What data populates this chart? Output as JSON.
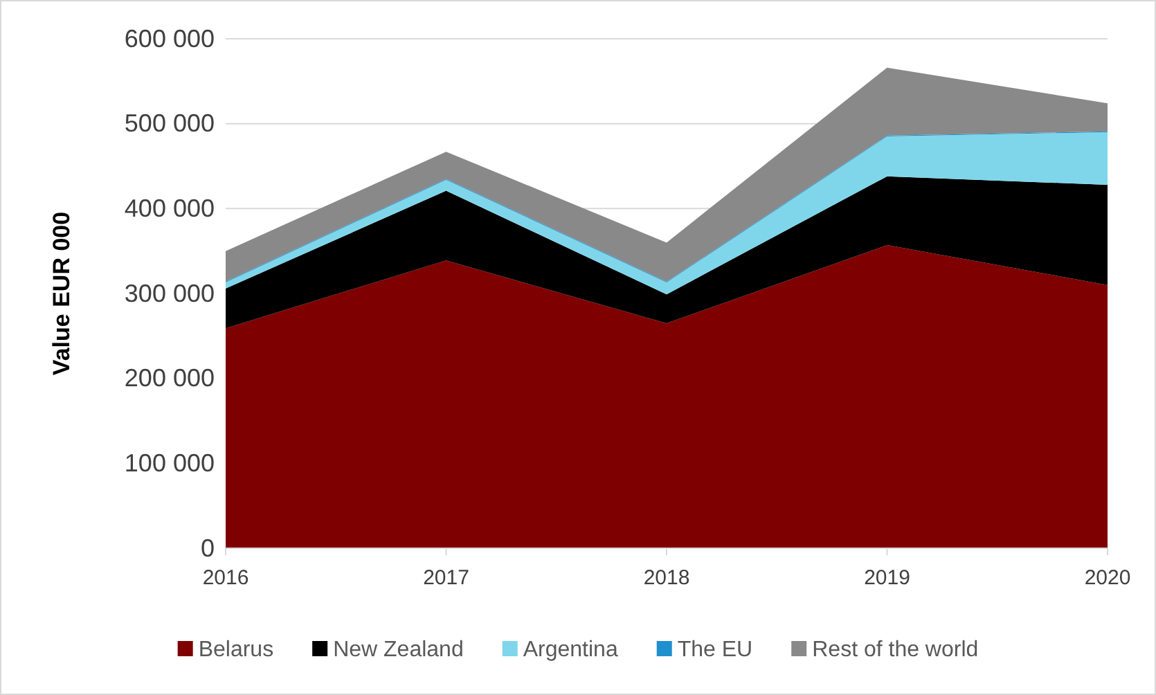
{
  "chart_data": {
    "type": "area",
    "stacked": true,
    "ylabel": "Value EUR 000",
    "categories": [
      "2016",
      "2017",
      "2018",
      "2019",
      "2020"
    ],
    "series": [
      {
        "name": "Belarus",
        "color": "#7f0000",
        "values": [
          259000,
          339000,
          265000,
          357000,
          310000
        ]
      },
      {
        "name": "New Zealand",
        "color": "#000000",
        "values": [
          47000,
          82000,
          34000,
          81000,
          118000
        ]
      },
      {
        "name": "Argentina",
        "color": "#7fd6ea",
        "values": [
          7000,
          13000,
          14000,
          47000,
          62000
        ]
      },
      {
        "name": "The EU",
        "color": "#1f8fce",
        "values": [
          1000,
          1000,
          1000,
          1000,
          1000
        ]
      },
      {
        "name": "Rest of the world",
        "color": "#898989",
        "values": [
          36000,
          32000,
          46000,
          80000,
          33000
        ]
      }
    ],
    "ylim": [
      0,
      600000
    ],
    "yticks": [
      {
        "value": 0,
        "label": "0"
      },
      {
        "value": 100000,
        "label": "100 000"
      },
      {
        "value": 200000,
        "label": "200 000"
      },
      {
        "value": 300000,
        "label": "300 000"
      },
      {
        "value": 400000,
        "label": "400 000"
      },
      {
        "value": 500000,
        "label": "500 000"
      },
      {
        "value": 600000,
        "label": "600 000"
      }
    ],
    "grid": "y",
    "legend": "bottom"
  }
}
